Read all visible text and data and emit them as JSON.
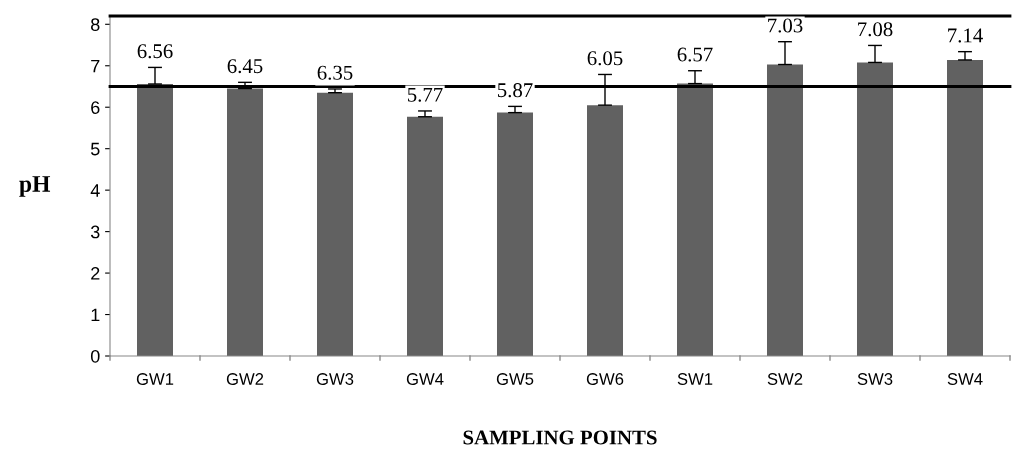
{
  "chart_data": {
    "type": "bar",
    "xlabel": "SAMPLING POINTS",
    "ylabel": "pH",
    "categories": [
      "GW1",
      "GW2",
      "GW3",
      "GW4",
      "GW5",
      "GW6",
      "SW1",
      "SW2",
      "SW3",
      "SW4"
    ],
    "values": [
      6.56,
      6.45,
      6.35,
      5.77,
      5.87,
      6.05,
      6.57,
      7.03,
      7.08,
      7.14
    ],
    "errors": [
      [
        6.56,
        6.96
      ],
      [
        6.45,
        6.6
      ],
      [
        6.35,
        6.44
      ],
      [
        5.77,
        5.91
      ],
      [
        5.87,
        6.02
      ],
      [
        6.05,
        6.79
      ],
      [
        6.57,
        6.88
      ],
      [
        7.03,
        7.58
      ],
      [
        7.08,
        7.49
      ],
      [
        7.14,
        7.34
      ]
    ],
    "color": "#616161",
    "data_labels": true,
    "ylim": [
      0,
      8.2
    ],
    "yticks": [
      0,
      1,
      2,
      3,
      4,
      5,
      6,
      7,
      8
    ],
    "ref_lines": [
      {
        "axis": "y",
        "value": 6.5,
        "color": "#000000"
      },
      {
        "axis": "y",
        "value": 8.2,
        "color": "#000000"
      }
    ]
  }
}
